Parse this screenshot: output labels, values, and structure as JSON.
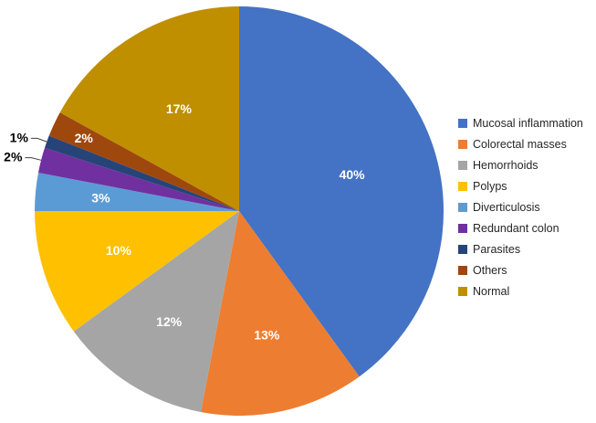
{
  "chart_data": {
    "type": "pie",
    "title": "",
    "categories": [
      "Mucosal inflammation",
      "Colorectal masses",
      "Hemorrhoids",
      "Polyps",
      "Diverticulosis",
      "Redundant colon",
      "Parasites",
      "Others",
      "Normal"
    ],
    "values": [
      40,
      13,
      12,
      10,
      3,
      2,
      1,
      2,
      17
    ],
    "unit": "percent",
    "data_labels": [
      "40%",
      "13%",
      "12%",
      "10%",
      "3%",
      "2%",
      "1%",
      "2%",
      "17%"
    ],
    "colors": [
      "#4472C4",
      "#ED7D31",
      "#A5A5A5",
      "#FFC000",
      "#5B9BD5",
      "#7030A0",
      "#264478",
      "#9E480E",
      "#BF8F00"
    ],
    "start_angle_deg": 0,
    "direction": "clockwise",
    "legend_position": "right",
    "label_placement": [
      "inside",
      "inside",
      "inside",
      "inside",
      "inside",
      "outside",
      "outside",
      "inside",
      "inside"
    ],
    "label_radius": [
      0.58,
      0.62,
      0.64,
      0.62,
      0.68,
      0,
      0,
      0.84,
      0.58
    ],
    "background": "#FFFFFF"
  }
}
